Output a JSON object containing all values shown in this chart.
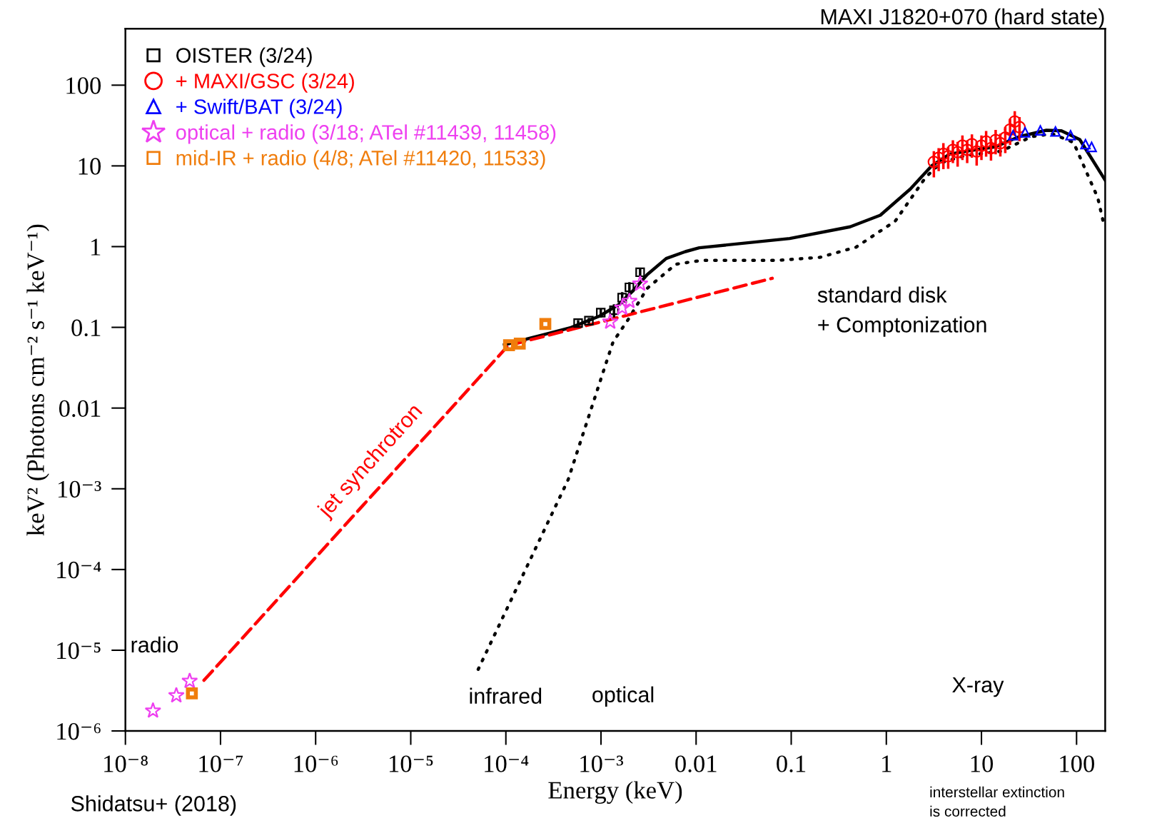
{
  "chart_data": {
    "type": "scatter",
    "title": "MAXI J1820+070 (hard state)",
    "xlabel": "Energy (keV)",
    "ylabel": "keV² (Photons cm⁻² s⁻¹ keV⁻¹)",
    "log": "xy",
    "grid": false,
    "legend": "top left",
    "xlim": [
      1e-08,
      200
    ],
    "ylim": [
      1e-06,
      500
    ],
    "xticks": [
      {
        "value": 1e-08,
        "label": "10⁻⁸"
      },
      {
        "value": 1e-07,
        "label": "10⁻⁷"
      },
      {
        "value": 1e-06,
        "label": "10⁻⁶"
      },
      {
        "value": 1e-05,
        "label": "10⁻⁵"
      },
      {
        "value": 0.0001,
        "label": "10⁻⁴"
      },
      {
        "value": 0.001,
        "label": "10⁻³"
      },
      0.01,
      0.1,
      1,
      10,
      100
    ],
    "yticks": [
      {
        "value": 1e-06,
        "label": "10⁻⁶"
      },
      {
        "value": 1e-05,
        "label": "10⁻⁵"
      },
      {
        "value": 0.0001,
        "label": "10⁻⁴"
      },
      {
        "value": 0.001,
        "label": "10⁻³"
      },
      0.01,
      0.1,
      1,
      10,
      100
    ],
    "annotations": [
      "radio",
      "jet synchrotron",
      "infrared",
      "optical",
      "X-ray",
      "standard disk\n+ Comptonization",
      "Shidatsu+ (2018)",
      "interstellar extinction\nis corrected"
    ],
    "series": [
      {
        "type": "line",
        "color": "#000000",
        "line_style": "dotted",
        "x": [
          5.12e-05,
          0.000452,
          0.00112,
          0.00134,
          0.00193,
          0.00306,
          0.00612,
          0.0115,
          0.0728,
          0.2,
          0.48,
          1.24,
          2.59,
          3.72,
          6.68,
          16.1,
          33.4,
          55.7,
          92.9,
          167,
          193
        ],
        "values": [
          5.8e-06,
          0.0013,
          0.0348,
          0.066,
          0.125,
          0.304,
          0.605,
          0.676,
          0.676,
          0.736,
          0.984,
          2.07,
          7.21,
          10.9,
          13.4,
          15.2,
          23.0,
          25.0,
          19.5,
          4.03,
          1.91
        ]
      },
      {
        "type": "line",
        "color": "#000000",
        "line_style": "solid",
        "x": [
          9.66e-05,
          0.000484,
          0.000968,
          0.00153,
          0.00217,
          0.00306,
          0.00485,
          0.00771,
          0.0108,
          0.0964,
          0.416,
          0.865,
          1.79,
          2.99,
          4.64,
          7.74,
          13.9,
          24.9,
          48.2,
          69.3,
          108,
          200
        ],
        "values": [
          0.0608,
          0.0993,
          0.138,
          0.191,
          0.284,
          0.45,
          0.713,
          0.867,
          0.968,
          1.26,
          1.76,
          2.45,
          5.18,
          10.0,
          14.0,
          15.5,
          17.2,
          23.0,
          27.6,
          27.2,
          21.2,
          6.64
        ]
      },
      {
        "type": "line",
        "color": "#ff0000",
        "line_style": "dashed",
        "x": [
          6.7e-08,
          0.000106,
          0.0632
        ],
        "values": [
          4.24e-06,
          0.0596,
          0.405
        ]
      },
      {
        "name": "OISTER (3/24)",
        "color": "#000000",
        "marker": "square",
        "x": [
          0.000575,
          0.000746,
          0.000995,
          0.00137,
          0.00167,
          0.00199,
          0.00258
        ],
        "values": [
          0.113,
          0.121,
          0.152,
          0.163,
          0.233,
          0.313,
          0.481
        ],
        "errors": [
          0.01,
          0.01,
          0.02,
          0.03,
          0.04,
          0.05,
          0.06
        ]
      },
      {
        "name": "+ MAXI/GSC (3/24)",
        "color": "#ff0000",
        "marker": "circle",
        "x": [
          3.16,
          3.55,
          3.98,
          4.47,
          5.01,
          5.62,
          6.31,
          7.08,
          7.94,
          8.91,
          10,
          11.2,
          12.6,
          14.1,
          15.8,
          17.8,
          20.0,
          22.4,
          25.1
        ],
        "values": [
          11.2,
          12.6,
          14.1,
          13.2,
          15.8,
          14.8,
          17.8,
          15.8,
          18.6,
          15.1,
          17.8,
          20.0,
          16.6,
          20.9,
          19.1,
          22.4,
          28.2,
          35.5,
          30.2
        ],
        "errors": [
          4,
          4,
          5,
          4,
          5,
          5,
          6,
          5,
          6,
          5,
          6,
          7,
          5,
          7,
          6,
          8,
          10,
          12,
          10
        ]
      },
      {
        "name": "+ Swift/BAT (3/24)",
        "color": "#0000ff",
        "marker": "triangle",
        "x": [
          21.5,
          28.8,
          41.6,
          60,
          86.5,
          124,
          144
        ],
        "values": [
          24.0,
          26.1,
          27.5,
          26.7,
          24.0,
          18.6,
          17.2
        ]
      },
      {
        "name": "optical + radio (3/18; ATel #11439, 11458)",
        "color": "#ee3ff0",
        "marker": "star",
        "x": [
          1.95e-08,
          3.43e-08,
          4.74e-08,
          0.00125,
          0.00167,
          0.00199,
          0.00258
        ],
        "values": [
          1.78e-06,
          2.75e-06,
          4.15e-06,
          0.117,
          0.174,
          0.211,
          0.346
        ]
      },
      {
        "name": "mid-IR + radio (4/8; ATel #11420, 11533)",
        "color": "#f07d0c",
        "marker": "square",
        "x": [
          5e-08,
          0.000108,
          0.00014,
          0.00026
        ],
        "values": [
          2.92e-06,
          0.06,
          0.0628,
          0.11
        ]
      }
    ]
  }
}
